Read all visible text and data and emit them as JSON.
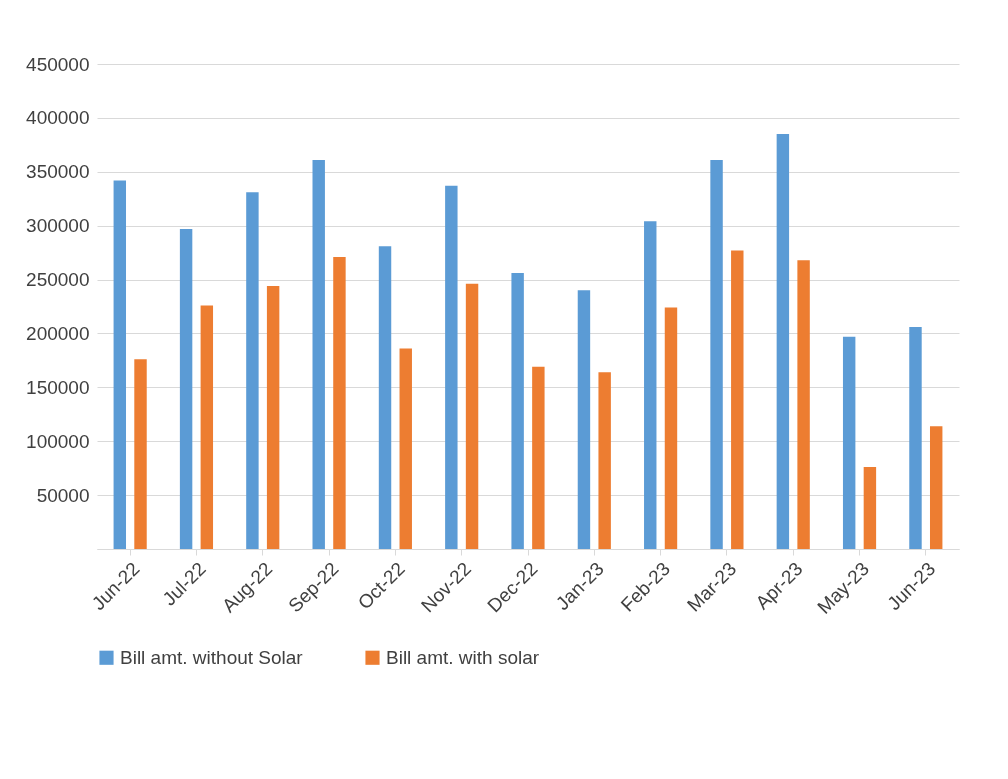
{
  "chart_data": {
    "type": "bar",
    "categories": [
      "Jun-22",
      "Jul-22",
      "Aug-22",
      "Sep-22",
      "Oct-22",
      "Nov-22",
      "Dec-22",
      "Jan-23",
      "Feb-23",
      "Mar-23",
      "Apr-23",
      "May-23",
      "Jun-23"
    ],
    "series": [
      {
        "name": "Bill amt. without Solar",
        "color": "#5b9bd5",
        "values": [
          342000,
          297000,
          331000,
          361000,
          281000,
          337000,
          256000,
          240000,
          304000,
          361000,
          385000,
          197000,
          206000
        ]
      },
      {
        "name": "Bill amt. with solar",
        "color": "#ed7d31",
        "values": [
          176000,
          226000,
          244000,
          271000,
          186000,
          246000,
          169000,
          164000,
          224000,
          277000,
          268000,
          76000,
          114000
        ]
      }
    ],
    "ylim": [
      0,
      450000
    ],
    "yticks": [
      {
        "value": 0,
        "label": null
      },
      50000,
      100000,
      150000,
      200000,
      250000,
      300000,
      350000,
      400000,
      450000
    ],
    "grid": "y",
    "legend": "bottom"
  }
}
